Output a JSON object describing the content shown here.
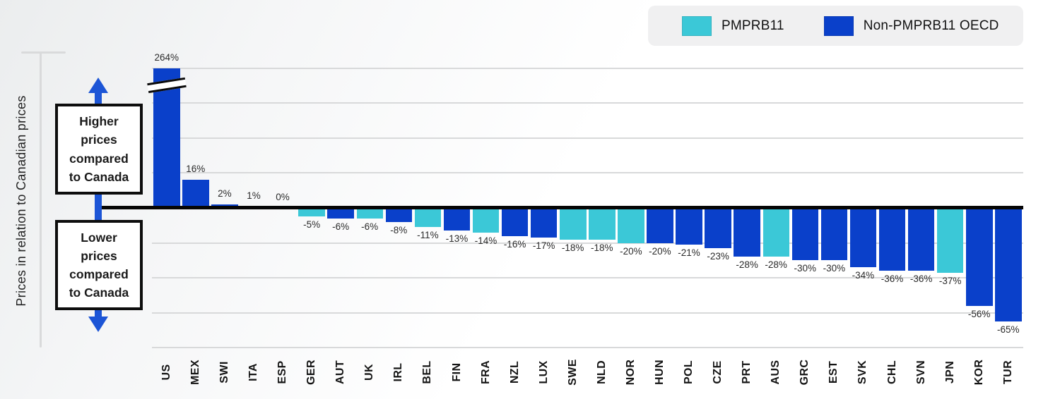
{
  "chart_data": {
    "type": "bar",
    "title": "",
    "ylabel": "Prices in relation to Canadian prices",
    "unit": "%",
    "ylim_displayed": [
      -80,
      80
    ],
    "gridline_values": [
      80,
      60,
      40,
      20,
      -20,
      -40,
      -60,
      -80
    ],
    "grid": true,
    "legend_position": "top-right",
    "note": "US bar truncated with axis break; actual value 264%",
    "bars": [
      {
        "country": "US",
        "value": 264,
        "label": "264%",
        "group": "oecd",
        "truncated": true
      },
      {
        "country": "MEX",
        "value": 16,
        "label": "16%",
        "group": "oecd"
      },
      {
        "country": "SWI",
        "value": 2,
        "label": "2%",
        "group": "oecd"
      },
      {
        "country": "ITA",
        "value": 1,
        "label": "1%",
        "group": "pmprb11"
      },
      {
        "country": "ESP",
        "value": 0,
        "label": "0%",
        "group": "pmprb11"
      },
      {
        "country": "GER",
        "value": -5,
        "label": "-5%",
        "group": "pmprb11"
      },
      {
        "country": "AUT",
        "value": -6,
        "label": "-6%",
        "group": "oecd"
      },
      {
        "country": "UK",
        "value": -6,
        "label": "-6%",
        "group": "pmprb11"
      },
      {
        "country": "IRL",
        "value": -8,
        "label": "-8%",
        "group": "oecd"
      },
      {
        "country": "BEL",
        "value": -11,
        "label": "-11%",
        "group": "pmprb11"
      },
      {
        "country": "FIN",
        "value": -13,
        "label": "-13%",
        "group": "oecd"
      },
      {
        "country": "FRA",
        "value": -14,
        "label": "-14%",
        "group": "pmprb11"
      },
      {
        "country": "NZL",
        "value": -16,
        "label": "-16%",
        "group": "oecd"
      },
      {
        "country": "LUX",
        "value": -17,
        "label": "-17%",
        "group": "oecd"
      },
      {
        "country": "SWE",
        "value": -18,
        "label": "-18%",
        "group": "pmprb11"
      },
      {
        "country": "NLD",
        "value": -18,
        "label": "-18%",
        "group": "pmprb11"
      },
      {
        "country": "NOR",
        "value": -20,
        "label": "-20%",
        "group": "pmprb11"
      },
      {
        "country": "HUN",
        "value": -20,
        "label": "-20%",
        "group": "oecd"
      },
      {
        "country": "POL",
        "value": -21,
        "label": "-21%",
        "group": "oecd"
      },
      {
        "country": "CZE",
        "value": -23,
        "label": "-23%",
        "group": "oecd"
      },
      {
        "country": "PRT",
        "value": -28,
        "label": "-28%",
        "group": "oecd"
      },
      {
        "country": "AUS",
        "value": -28,
        "label": "-28%",
        "group": "pmprb11"
      },
      {
        "country": "GRC",
        "value": -30,
        "label": "-30%",
        "group": "oecd"
      },
      {
        "country": "EST",
        "value": -30,
        "label": "-30%",
        "group": "oecd"
      },
      {
        "country": "SVK",
        "value": -34,
        "label": "-34%",
        "group": "oecd"
      },
      {
        "country": "CHL",
        "value": -36,
        "label": "-36%",
        "group": "oecd"
      },
      {
        "country": "SVN",
        "value": -36,
        "label": "-36%",
        "group": "oecd"
      },
      {
        "country": "JPN",
        "value": -37,
        "label": "-37%",
        "group": "pmprb11"
      },
      {
        "country": "KOR",
        "value": -56,
        "label": "-56%",
        "group": "oecd"
      },
      {
        "country": "TUR",
        "value": -65,
        "label": "-65%",
        "group": "oecd"
      }
    ]
  },
  "legend": {
    "items": [
      {
        "label": "PMPRB11",
        "group": "pmprb11",
        "color": "#3bc8d7"
      },
      {
        "label": "Non-PMPRB11 OECD",
        "group": "oecd",
        "color": "#0a40ca"
      }
    ]
  },
  "annotations": {
    "higher_box": "Higher\nprices\ncompared\nto Canada",
    "lower_box": "Lower\nprices\ncompared\nto Canada",
    "arrow_color": "#1c55d6"
  }
}
